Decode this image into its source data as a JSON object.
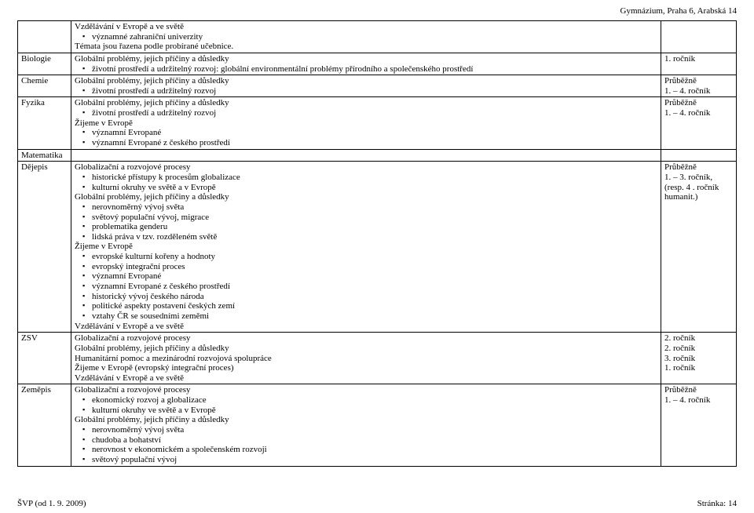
{
  "header": {
    "institution": "Gymnázium, Praha 6, Arabská 14"
  },
  "rows": {
    "intro": {
      "subject": "",
      "line1": "Vzdělávání v Evropě a ve světě",
      "bullet1": "významné zahraniční univerzity",
      "line2": "Témata jsou řazena podle probírané učebnice.",
      "notes": ""
    },
    "biologie": {
      "subject": "Biologie",
      "line1": "Globální problémy, jejich příčiny a důsledky",
      "bullet1": "životní prostředí a udržitelný rozvoj: globální environmentální problémy přírodního a společenského prostředí",
      "notes": "1. ročník"
    },
    "chemie": {
      "subject": "Chemie",
      "line1": "Globální problémy, jejich příčiny a důsledky",
      "bullet1": "životní prostředí a udržitelný rozvoj",
      "note1": "Průběžně",
      "note2": "1. – 4. ročník"
    },
    "fyzika": {
      "subject": "Fyzika",
      "line1": "Globální problémy, jejich příčiny a důsledky",
      "bullet1": "životní prostředí a udržitelný rozvoj",
      "line2": "Žijeme v Evropě",
      "bullet2": "významní Evropané",
      "bullet3": "významní Evropané z českého prostředí",
      "note1": "Průběžně",
      "note2": "1. – 4. ročník"
    },
    "matematika": {
      "subject": "Matematika"
    },
    "dejepis": {
      "subject": "Dějepis",
      "l1": "Globalizační a rozvojové procesy",
      "b1": "historické přístupy k procesům globalizace",
      "b2": "kulturní okruhy ve světě a v Evropě",
      "l2": "Globální problémy, jejich příčiny a důsledky",
      "b3": "nerovnoměrný vývoj světa",
      "b4": "světový populační vývoj, migrace",
      "b5": "problematika genderu",
      "b6": "lidská práva v tzv. rozděleném světě",
      "l3": "Žijeme v Evropě",
      "b7": "evropské kulturní kořeny a hodnoty",
      "b8": "evropský integrační proces",
      "b9": "významní Evropané",
      "b10": "významní Evropané z českého prostředí",
      "b11": "historický vývoj českého národa",
      "b12": "politické aspekty postavení českých zemí",
      "b13": "vztahy ČR se sousedními zeměmi",
      "l4": "Vzdělávání v Evropě a ve světě",
      "note1": "Průběžně",
      "note2": "1. – 3. ročník,",
      "note3": "(resp. 4 . ročník",
      "note4": "humanit.)"
    },
    "zsv": {
      "subject": "ZSV",
      "l1": "Globalizační a rozvojové procesy",
      "l2": "Globální problémy, jejich příčiny a důsledky",
      "l3": "Humanitární pomoc a mezinárodní rozvojová spolupráce",
      "l4": "Žijeme v Evropě (evropský integrační proces)",
      "l5": "Vzdělávání v Evropě a ve světě",
      "n1": "2. ročník",
      "n2": "2. ročník",
      "n3": "3. ročník",
      "n4": "1. ročník"
    },
    "zemepis": {
      "subject": "Zeměpis",
      "l1": "Globalizační a rozvojové procesy",
      "b1": "ekonomický rozvoj a globalizace",
      "b2": "kulturní okruhy ve světě a v Evropě",
      "l2": "Globální problémy, jejich příčiny a důsledky",
      "b3": "nerovnoměrný vývoj světa",
      "b4": "chudoba a bohatství",
      "b5": "nerovnost v ekonomickém a společenském rozvoji",
      "b6": "světový populační vývoj",
      "note1": "Průběžně",
      "note2": "1. – 4. ročník"
    }
  },
  "footer": {
    "left": "ŠVP (od 1. 9. 2009)",
    "right": "Stránka: 14"
  }
}
